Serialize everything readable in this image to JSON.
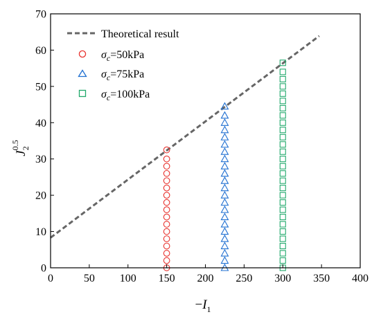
{
  "chart_data": {
    "type": "scatter",
    "xlabel": "−I₁",
    "ylabel": "J₂^0.5",
    "xlim": [
      0,
      400
    ],
    "ylim": [
      0,
      70
    ],
    "x_ticks": [
      "0",
      "50",
      "100",
      "150",
      "200",
      "250",
      "300",
      "350",
      "400"
    ],
    "y_ticks": [
      "0",
      "10",
      "20",
      "30",
      "40",
      "50",
      "60",
      "70"
    ],
    "grid": false,
    "legend_position": "top-left",
    "theoretical_line": {
      "name": "Theoretical result",
      "color": "#666666",
      "style": "dashed",
      "x": [
        0,
        347
      ],
      "y": [
        8.3,
        63.9
      ]
    },
    "series": [
      {
        "name": "σc=50kPa",
        "marker": "circle",
        "color": "#e8332f",
        "x": 150,
        "y": [
          0,
          2,
          4,
          6,
          8,
          10,
          12,
          14,
          16,
          18,
          20,
          22,
          24,
          26,
          28,
          30,
          32.5
        ]
      },
      {
        "name": "σc=75kPa",
        "marker": "triangle",
        "color": "#1f6fd1",
        "x": 225,
        "y": [
          0,
          2,
          4,
          6,
          8,
          10,
          12,
          14,
          16,
          18,
          20,
          22,
          24,
          26,
          28,
          30,
          32,
          34,
          36,
          38,
          40,
          42,
          44.5
        ]
      },
      {
        "name": "σc=100kPa",
        "marker": "square",
        "color": "#1fa86a",
        "x": 300,
        "y": [
          0,
          2,
          4,
          6,
          8,
          10,
          12,
          14,
          16,
          18,
          20,
          22,
          24,
          26,
          28,
          30,
          32,
          34,
          36,
          38,
          40,
          42,
          44,
          46,
          48,
          50,
          52,
          54,
          56.5
        ]
      }
    ],
    "legend": {
      "line_label": "Theoretical result",
      "sigma_symbol": "σ",
      "sigma_subscript": "c",
      "items": [
        "=50kPa",
        "=75kPa",
        "=100kPa"
      ]
    }
  }
}
